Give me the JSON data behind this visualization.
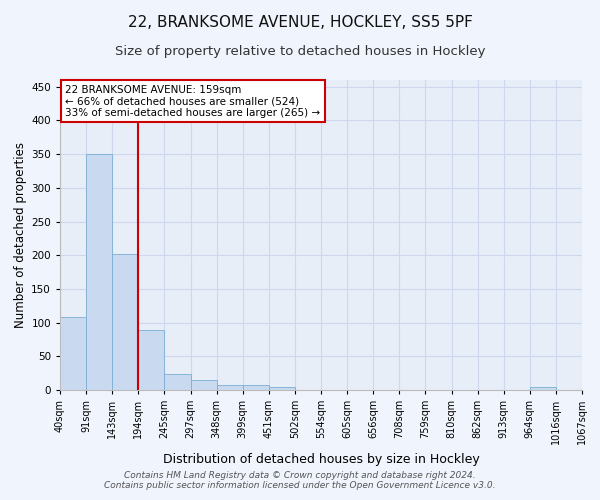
{
  "title1": "22, BRANKSOME AVENUE, HOCKLEY, SS5 5PF",
  "title2": "Size of property relative to detached houses in Hockley",
  "xlabel": "Distribution of detached houses by size in Hockley",
  "ylabel": "Number of detached properties",
  "bin_labels": [
    "40sqm",
    "91sqm",
    "143sqm",
    "194sqm",
    "245sqm",
    "297sqm",
    "348sqm",
    "399sqm",
    "451sqm",
    "502sqm",
    "554sqm",
    "605sqm",
    "656sqm",
    "708sqm",
    "759sqm",
    "810sqm",
    "862sqm",
    "913sqm",
    "964sqm",
    "1016sqm",
    "1067sqm"
  ],
  "bar_heights": [
    108,
    350,
    202,
    89,
    24,
    15,
    8,
    7,
    4,
    0,
    0,
    0,
    0,
    0,
    0,
    0,
    0,
    0,
    4,
    0
  ],
  "bar_color": "#c9daf0",
  "bar_edge_color": "#7aafd4",
  "grid_color": "#cdd8ee",
  "bg_color": "#e8eef8",
  "fig_bg_color": "#f0f4fc",
  "red_line_color": "#cc0000",
  "annotation_text": "22 BRANKSOME AVENUE: 159sqm\n← 66% of detached houses are smaller (524)\n33% of semi-detached houses are larger (265) →",
  "annotation_box_color": "#ffffff",
  "annotation_box_edge": "#cc0000",
  "ylim": [
    0,
    460
  ],
  "yticks": [
    0,
    50,
    100,
    150,
    200,
    250,
    300,
    350,
    400,
    450
  ],
  "footer": "Contains HM Land Registry data © Crown copyright and database right 2024.\nContains public sector information licensed under the Open Government Licence v3.0.",
  "title1_fontsize": 11,
  "title2_fontsize": 9.5,
  "xlabel_fontsize": 9,
  "ylabel_fontsize": 8.5,
  "footer_fontsize": 6.5,
  "tick_fontsize": 7,
  "annot_fontsize": 7.5
}
